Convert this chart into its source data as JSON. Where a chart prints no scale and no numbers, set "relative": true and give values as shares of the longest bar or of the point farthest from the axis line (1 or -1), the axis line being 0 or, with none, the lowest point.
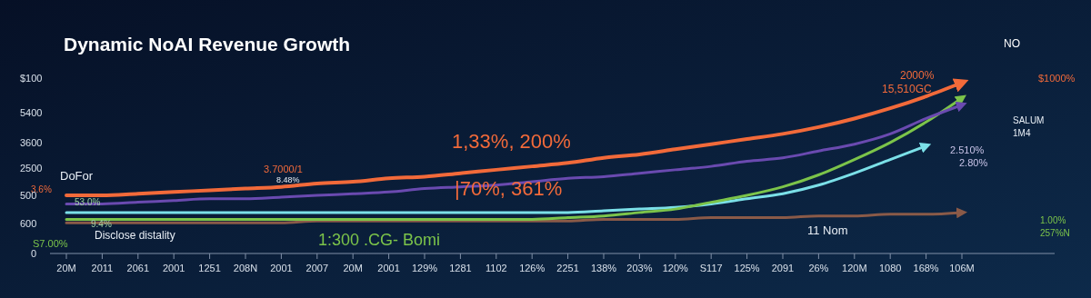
{
  "chart_data": {
    "type": "line",
    "title": "Dynamic NoAI Revenue Growth",
    "categories": [
      "20M",
      "2011",
      "2061",
      "2001",
      "1251",
      "208N",
      "2001",
      "2007",
      "20M",
      "2001",
      "129%",
      "1281",
      "1102",
      "126%",
      "2251",
      "138%",
      "203%",
      "120%",
      "S117",
      "125%",
      "2091",
      "26%",
      "120M",
      "1080",
      "168%",
      "106M"
    ],
    "relative": true,
    "series": [
      {
        "color": "#8a5a48",
        "values": [
          0.18,
          0.18,
          0.18,
          0.18,
          0.18,
          0.18,
          0.18,
          0.19,
          0.19,
          0.19,
          0.19,
          0.19,
          0.19,
          0.19,
          0.19,
          0.2,
          0.2,
          0.2,
          0.21,
          0.21,
          0.21,
          0.22,
          0.22,
          0.23,
          0.23,
          0.24
        ]
      },
      {
        "color": "#7be0e8",
        "values": [
          0.24,
          0.24,
          0.24,
          0.24,
          0.24,
          0.24,
          0.24,
          0.24,
          0.24,
          0.24,
          0.24,
          0.24,
          0.24,
          0.24,
          0.24,
          0.25,
          0.26,
          0.27,
          0.29,
          0.32,
          0.35,
          0.4,
          0.47,
          0.55,
          0.63,
          null
        ]
      },
      {
        "color": "#7cc44a",
        "values": [
          0.2,
          0.2,
          0.2,
          0.2,
          0.2,
          0.2,
          0.2,
          0.2,
          0.2,
          0.2,
          0.2,
          0.2,
          0.2,
          0.2,
          0.21,
          0.22,
          0.24,
          0.26,
          0.3,
          0.34,
          0.39,
          0.46,
          0.55,
          0.65,
          0.77,
          0.91
        ]
      },
      {
        "color": "#6a4ab0",
        "values": [
          0.29,
          0.29,
          0.3,
          0.31,
          0.32,
          0.32,
          0.33,
          0.34,
          0.35,
          0.36,
          0.38,
          0.39,
          0.4,
          0.42,
          0.44,
          0.45,
          0.47,
          0.49,
          0.51,
          0.54,
          0.56,
          0.6,
          0.64,
          0.7,
          0.79,
          0.87
        ]
      },
      {
        "color": "#f26a3a",
        "values": [
          0.34,
          0.34,
          0.35,
          0.36,
          0.37,
          0.38,
          0.39,
          0.41,
          0.42,
          0.44,
          0.45,
          0.47,
          0.49,
          0.51,
          0.53,
          0.56,
          0.58,
          0.61,
          0.64,
          0.67,
          0.7,
          0.74,
          0.79,
          0.85,
          0.92,
          1
        ]
      }
    ],
    "annotations": [
      "DoFor",
      "3.6%",
      "53.0%",
      "9.4%",
      "S7.00%",
      "Disclose distality",
      "1:300 .CG- Bomi",
      "3.7000/1",
      "8.48%",
      "1,33%, 200%",
      "|70%, 361%",
      "11 Nom",
      "2000%",
      "15,510GC",
      "2.510%",
      "2.80%",
      "NO",
      "$1000%",
      "SALUM",
      "1M4",
      "1.00%",
      "257%N",
      "$100",
      "5400",
      "3600",
      "2500",
      "500",
      "600",
      "0"
    ],
    "marker": "none",
    "line_style": "solid"
  }
}
